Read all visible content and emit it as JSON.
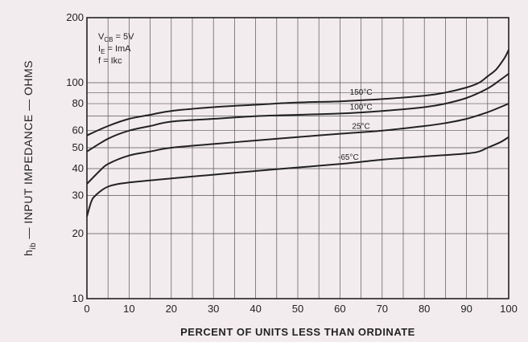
{
  "chart_data": {
    "type": "line",
    "xlabel": "PERCENT OF UNITS LESS THAN ORDINATE",
    "ylabel_main": "h",
    "ylabel_sub": "ib",
    "ylabel_rest": " — INPUT IMPEDANCE — OHMS",
    "xlim": [
      0,
      100
    ],
    "ylim": [
      10,
      200
    ],
    "yscale": "log",
    "x_ticks": [
      0,
      10,
      20,
      30,
      40,
      50,
      60,
      70,
      80,
      90,
      100
    ],
    "x_tick_labels": [
      "0",
      "10",
      "20",
      "30",
      "40",
      "50",
      "60",
      "70",
      "80",
      "90",
      "100"
    ],
    "y_tick_labels": [
      {
        "value": 200,
        "label": "200"
      },
      {
        "value": 100,
        "label": "100"
      },
      {
        "value": 80,
        "label": "80"
      },
      {
        "value": 60,
        "label": "60"
      },
      {
        "value": 50,
        "label": "50"
      },
      {
        "value": 40,
        "label": "40"
      },
      {
        "value": 30,
        "label": "30"
      },
      {
        "value": 20,
        "label": "20"
      },
      {
        "value": 10,
        "label": "10"
      }
    ],
    "y_grid": [
      10,
      20,
      30,
      40,
      50,
      60,
      70,
      80,
      90,
      100,
      200
    ],
    "grid": true,
    "conditions": [
      {
        "main": "V",
        "sub": "CB",
        "rest": " = 5V"
      },
      {
        "main": "I",
        "sub": "E",
        "rest": " = ImA"
      },
      {
        "main": "f = Ikc",
        "sub": "",
        "rest": ""
      }
    ],
    "series": [
      {
        "name": "150°C",
        "label_at": {
          "x": 65,
          "y": 88
        },
        "points": [
          [
            0,
            57
          ],
          [
            5,
            63
          ],
          [
            10,
            68
          ],
          [
            15,
            71
          ],
          [
            20,
            74
          ],
          [
            30,
            77
          ],
          [
            40,
            79
          ],
          [
            50,
            81
          ],
          [
            60,
            82
          ],
          [
            70,
            84
          ],
          [
            80,
            87
          ],
          [
            85,
            90
          ],
          [
            90,
            95
          ],
          [
            93,
            100
          ],
          [
            95,
            107
          ],
          [
            97,
            115
          ],
          [
            99,
            130
          ],
          [
            100,
            142
          ]
        ]
      },
      {
        "name": "100°C",
        "label_at": {
          "x": 65,
          "y": 75
        },
        "points": [
          [
            0,
            48
          ],
          [
            5,
            55
          ],
          [
            10,
            60
          ],
          [
            15,
            63
          ],
          [
            20,
            66
          ],
          [
            30,
            68
          ],
          [
            40,
            70
          ],
          [
            50,
            71
          ],
          [
            60,
            72
          ],
          [
            70,
            74
          ],
          [
            80,
            77
          ],
          [
            85,
            80
          ],
          [
            90,
            85
          ],
          [
            95,
            94
          ],
          [
            98,
            103
          ],
          [
            100,
            110
          ]
        ]
      },
      {
        "name": "25°C",
        "label_at": {
          "x": 65,
          "y": 61
        },
        "points": [
          [
            0,
            34
          ],
          [
            3,
            39
          ],
          [
            5,
            42
          ],
          [
            10,
            46
          ],
          [
            15,
            48
          ],
          [
            20,
            50
          ],
          [
            30,
            52
          ],
          [
            40,
            54
          ],
          [
            50,
            56
          ],
          [
            60,
            58
          ],
          [
            70,
            60
          ],
          [
            80,
            63
          ],
          [
            85,
            65
          ],
          [
            90,
            68
          ],
          [
            95,
            73
          ],
          [
            98,
            77
          ],
          [
            100,
            80
          ]
        ]
      },
      {
        "name": "-65°C",
        "label_at": {
          "x": 62,
          "y": 44
        },
        "points": [
          [
            0,
            24
          ],
          [
            1,
            28
          ],
          [
            2,
            30
          ],
          [
            5,
            33
          ],
          [
            10,
            34.5
          ],
          [
            20,
            36
          ],
          [
            30,
            37.5
          ],
          [
            40,
            39
          ],
          [
            50,
            40.5
          ],
          [
            60,
            42
          ],
          [
            70,
            44
          ],
          [
            80,
            45.5
          ],
          [
            90,
            47
          ],
          [
            93,
            48
          ],
          [
            95,
            50
          ],
          [
            98,
            53
          ],
          [
            100,
            56
          ]
        ]
      }
    ]
  }
}
